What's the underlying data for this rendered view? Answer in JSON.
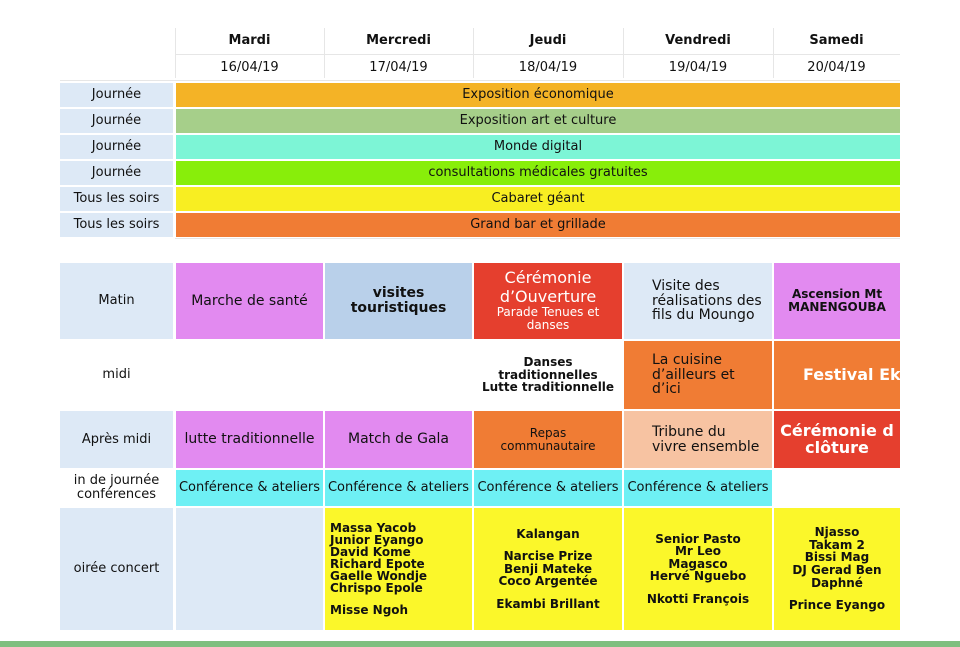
{
  "days": [
    "Mardi",
    "Mercredi",
    "Jeudi",
    "Vendredi",
    "Samedi"
  ],
  "dates": [
    "16/04/19",
    "17/04/19",
    "18/04/19",
    "19/04/19",
    "20/04/19"
  ],
  "bands": [
    {
      "label": "Journée",
      "text": "Exposition économique",
      "color": "#f4b326"
    },
    {
      "label": "Journée",
      "text": "Exposition art et culture",
      "color": "#a6cf8a"
    },
    {
      "label": "Journée",
      "text": "Monde digital",
      "color": "#7df5d6"
    },
    {
      "label": "Journée",
      "text": "consultations médicales gratuites",
      "color": "#88ee0a"
    },
    {
      "label": "Tous les soirs",
      "text": "Cabaret géant",
      "color": "#f8ee22"
    },
    {
      "label": "Tous les soirs",
      "text": "Grand bar et grillade",
      "color": "#f07c34"
    }
  ],
  "slots": [
    "Matin",
    "midi",
    "Après midi",
    "in de journée",
    "conférences",
    "oirée concert"
  ],
  "matin": {
    "mardi": "Marche de santé",
    "mercredi": "visites touristiques",
    "jeudi_title": "Cérémonie d’Ouverture",
    "jeudi_sub": "Parade Tenues et danses",
    "vendredi": "Visite des réalisations des fils du Moungo",
    "samedi_1": "Ascension Mt",
    "samedi_2": "MANENGOUBA"
  },
  "midi": {
    "jeudi_1": "Danses",
    "jeudi_2": "traditionnelles",
    "jeudi_3": "Lutte traditionnelle",
    "vendredi": "La cuisine d’ailleurs et d’ici",
    "samedi": "Festival Eko"
  },
  "apres_midi": {
    "mardi": "lutte traditionnelle",
    "mercredi": "Match de Gala",
    "jeudi_1": "Repas",
    "jeudi_2": "communautaire",
    "vendredi": "Tribune du vivre ensemble",
    "samedi": "Cérémonie d clôture"
  },
  "conference": "Conférence & ateliers",
  "concert": {
    "mercredi": [
      "Massa Yacob",
      "Junior Eyango",
      "David Kome",
      "Richard Epote",
      "Gaelle Wondje",
      "Chrispo Epole",
      "",
      "Misse Ngoh"
    ],
    "jeudi": [
      "Kalangan",
      "",
      "Narcise Prize",
      "Benji Mateke",
      "Coco Argentée",
      "",
      "Ekambi Brillant"
    ],
    "vendredi": [
      "Senior Pasto",
      "Mr Leo",
      "Magasco",
      "Hervé Nguebo",
      "",
      "Nkotti François"
    ],
    "samedi": [
      "Njasso",
      "Takam 2",
      "Bissi Mag",
      "DJ Gerad Ben",
      "Daphné",
      "",
      "Prince Eyango"
    ]
  },
  "colors": {
    "label_bg": "#dde9f6",
    "violet": "#e28af0",
    "light_blue": "#b9d0ea",
    "red": "#e53f2e",
    "pale_blue": "#dde9f6",
    "orange": "#f07c34",
    "peach": "#f7c3a2",
    "cyan": "#6ef0f4",
    "yellow": "#fbf72a"
  }
}
